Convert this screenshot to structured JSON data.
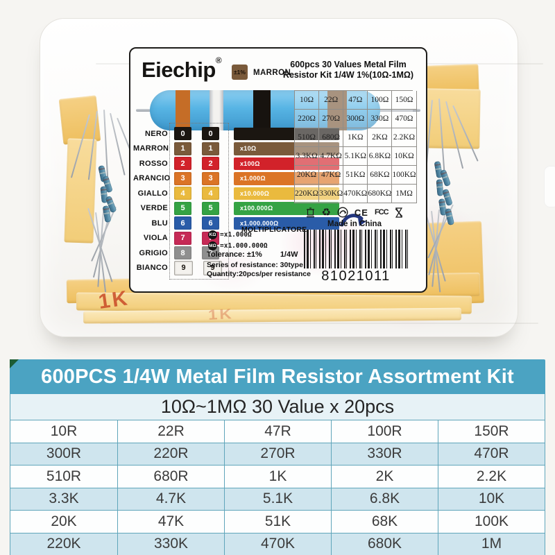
{
  "product_box": {
    "label": {
      "brand": "Eiechip",
      "brand_reg": "®",
      "tolerance_chip_text": "±1%",
      "tolerance_chip_name": "MARRON",
      "title_line1": "600pcs 30 Values Metal Film",
      "title_line2": "Resistor Kit 1/4W 1%(10Ω-1MΩ)",
      "values_grid": [
        [
          "10Ω",
          "22Ω",
          "47Ω",
          "100Ω",
          "150Ω"
        ],
        [
          "220Ω",
          "270Ω",
          "300Ω",
          "330Ω",
          "470Ω"
        ],
        [
          "510Ω",
          "680Ω",
          "1KΩ",
          "2KΩ",
          "2.2KΩ"
        ],
        [
          "3.3KΩ",
          "4.7KΩ",
          "5.1KΩ",
          "6.8KΩ",
          "10KΩ"
        ],
        [
          "20KΩ",
          "47KΩ",
          "51KΩ",
          "68KΩ",
          "100KΩ"
        ],
        [
          "220KΩ",
          "330KΩ",
          "470KΩ",
          "680KΩ",
          "1MΩ"
        ]
      ],
      "color_code_rows": [
        {
          "name": "NERO",
          "digit": "0",
          "color": "#1b1611",
          "text": "#ffffff",
          "multiplier": ""
        },
        {
          "name": "MARRON",
          "digit": "1",
          "color": "#7a5a3b",
          "text": "#ffffff",
          "multiplier": "x10Ω"
        },
        {
          "name": "ROSSO",
          "digit": "2",
          "color": "#d2222a",
          "text": "#ffffff",
          "multiplier": "x100Ω"
        },
        {
          "name": "ARANCIO",
          "digit": "3",
          "color": "#db7426",
          "text": "#ffffff",
          "multiplier": "x1.000Ω"
        },
        {
          "name": "GIALLO",
          "digit": "4",
          "color": "#eaba3e",
          "text": "#ffffff",
          "multiplier": "x10.000Ω"
        },
        {
          "name": "VERDE",
          "digit": "5",
          "color": "#35a344",
          "text": "#ffffff",
          "multiplier": "x100.000Ω"
        },
        {
          "name": "BLU",
          "digit": "6",
          "color": "#2a5ca8",
          "text": "#ffffff",
          "multiplier": "x1.000.000Ω"
        },
        {
          "name": "VIOLA",
          "digit": "7",
          "color": "#c62a56",
          "text": "#ffffff",
          "multiplier": ""
        },
        {
          "name": "GRIGIO",
          "digit": "8",
          "color": "#8f8f8f",
          "text": "#ffffff",
          "multiplier": ""
        },
        {
          "name": "BIANCO",
          "digit": "9",
          "color": "#f4f2ee",
          "text": "#1b1611",
          "multiplier": ""
        }
      ],
      "multiplier_pointer_label": "MOLTIPLICATORE",
      "unit_legend": [
        {
          "badge": "KΩ",
          "text": "=x1.000Ω"
        },
        {
          "badge": "MΩ",
          "text": "=x1.000.000Ω"
        }
      ],
      "tolerance_line_label": "Tolerance: ±1%",
      "wattage": "1/4W",
      "series_line": "Series of resistance: 30type",
      "quantity_line": "Quantity:20pcs/per resistance",
      "made_in": "Made in China",
      "barcode_number": "81021011",
      "certification": {
        "ce": "CE",
        "fcc": "FCC"
      },
      "icons": {
        "recycle_glyph": "♻"
      }
    },
    "tape_stamp": "1K"
  },
  "bottom_table": {
    "title": "600PCS 1/4W Metal Film Resistor Assortment Kit",
    "subtitle": "10Ω~1MΩ 30 Value x 20pcs",
    "rows": [
      [
        "10R",
        "22R",
        "47R",
        "100R",
        "150R"
      ],
      [
        "300R",
        "220R",
        "270R",
        "330R",
        "470R"
      ],
      [
        "510R",
        "680R",
        "1K",
        "2K",
        "2.2K"
      ],
      [
        "3.3K",
        "4.7K",
        "5.1K",
        "6.8K",
        "10K"
      ],
      [
        "20K",
        "47K",
        "51K",
        "68K",
        "100K"
      ],
      [
        "220K",
        "330K",
        "470K",
        "680K",
        "1M"
      ]
    ]
  },
  "colors": {
    "header_teal": "#4ba3c2",
    "subtitle_bg": "#e7f2f6",
    "row_alt_bg": "#cfe5ee",
    "table_border": "#5fa5ba",
    "corner_green": "#1c5c34",
    "tape_yellow": "#f1c468",
    "stamp_red": "#c8502c",
    "resistor_blue": "#57b4e4"
  }
}
